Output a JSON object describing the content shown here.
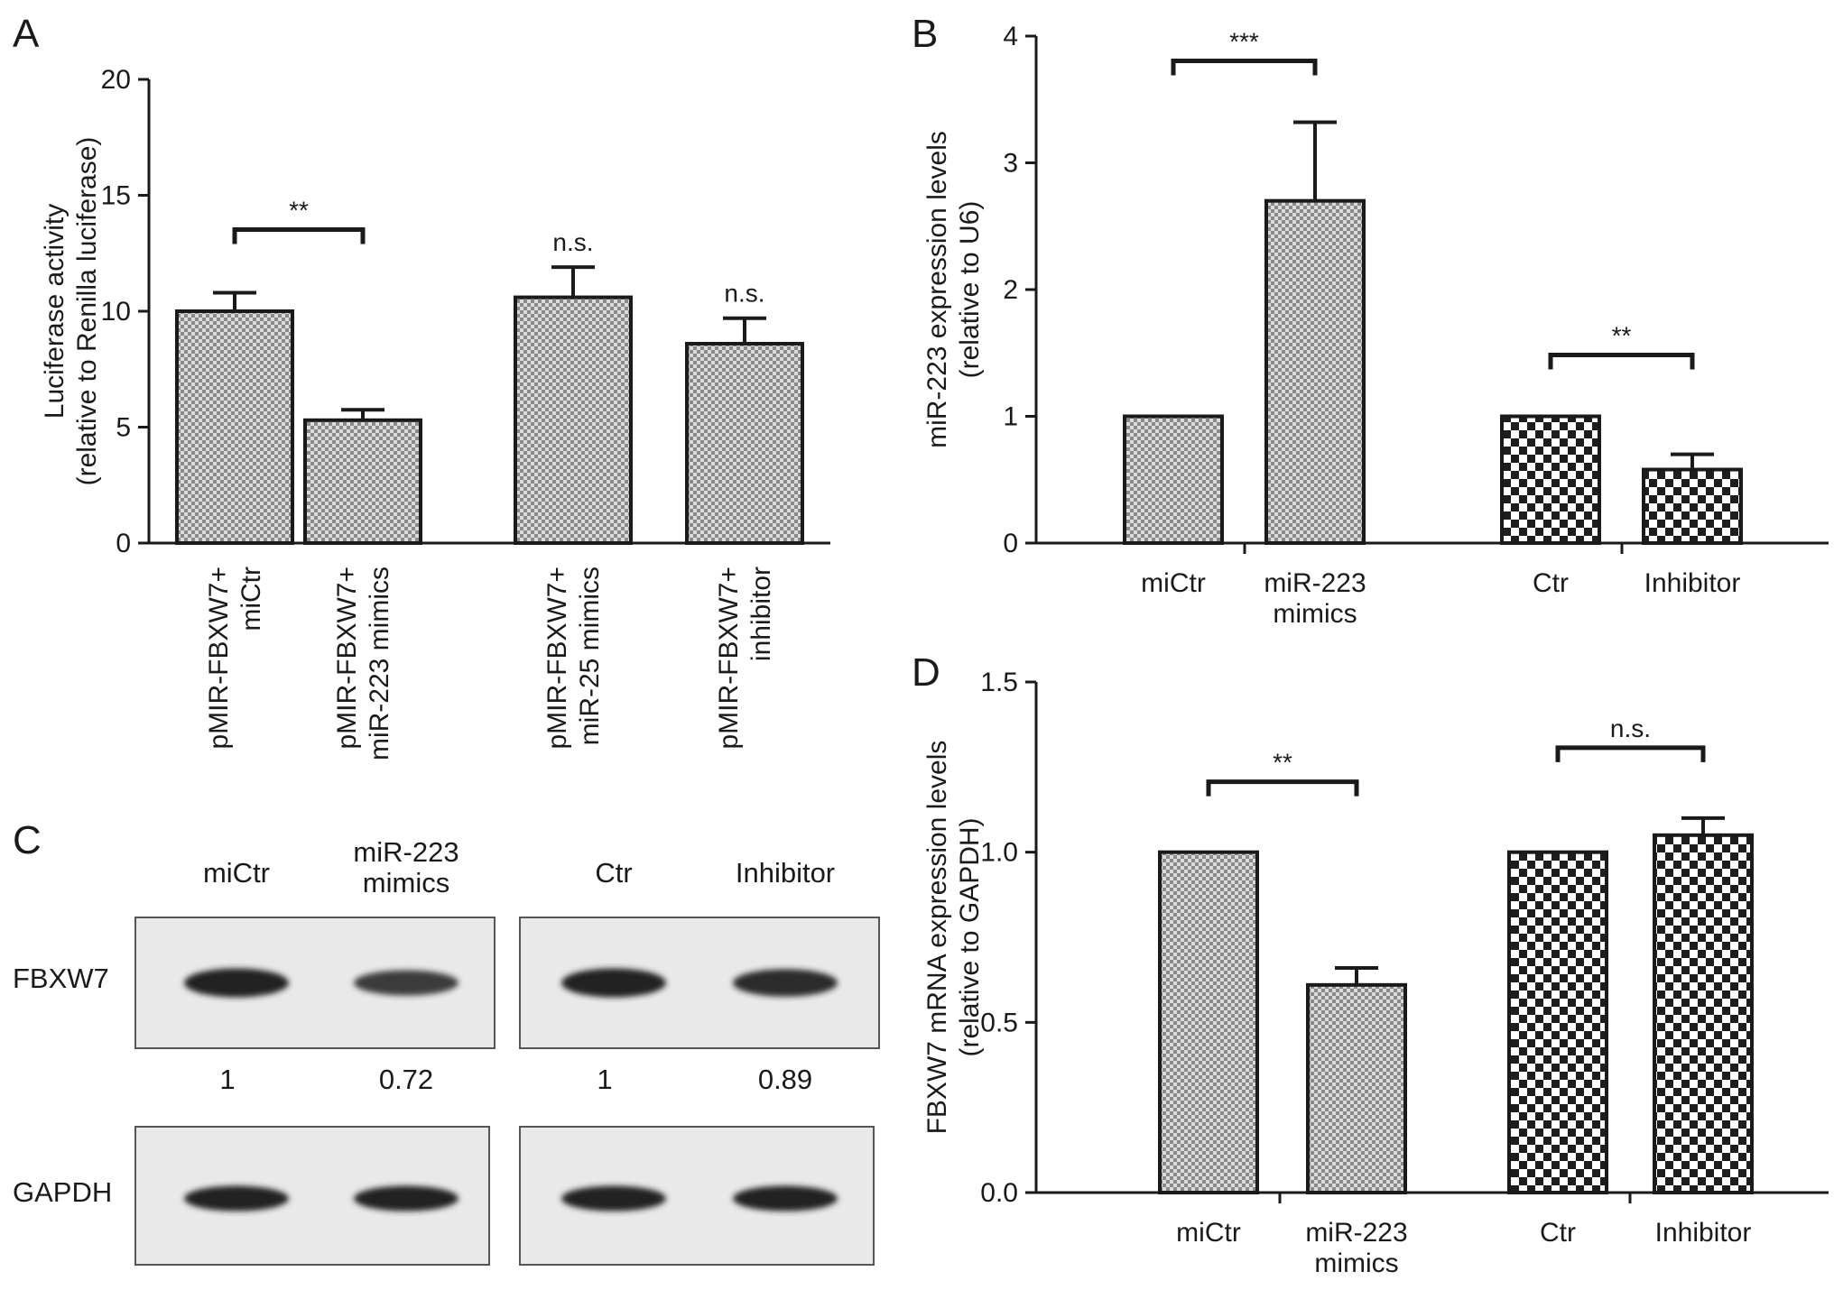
{
  "chart_data": [
    {
      "panel": "A",
      "type": "bar",
      "ylabel_lines": [
        "Luciferase activity",
        "(relative to Renilla luciferase)"
      ],
      "ylim": [
        0,
        20
      ],
      "yticks": [
        "0",
        "5",
        "10",
        "15",
        "20"
      ],
      "categories": [
        [
          "pMIR-FBXW7+",
          "miCtr"
        ],
        [
          "pMIR-FBXW7+",
          "miR-223 mimics"
        ],
        [
          "pMIR-FBXW7+",
          "miR-25 mimics"
        ],
        [
          "pMIR-FBXW7+",
          "inhibitor"
        ]
      ],
      "values": [
        10.0,
        5.3,
        10.6,
        8.6
      ],
      "errors": [
        0.8,
        0.45,
        1.3,
        1.1
      ],
      "pattern": "fine-check",
      "significance": [
        {
          "from": 0,
          "to": 1,
          "label": "**"
        },
        {
          "at": 2,
          "label": "n.s."
        },
        {
          "at": 3,
          "label": "n.s."
        }
      ]
    },
    {
      "panel": "B",
      "type": "bar",
      "ylabel_lines": [
        "miR-223 expression levels",
        "(relative to U6)"
      ],
      "ylim": [
        0,
        4
      ],
      "yticks": [
        "0",
        "1",
        "2",
        "3",
        "4"
      ],
      "categories": [
        [
          "miCtr"
        ],
        [
          "miR-223",
          "mimics"
        ],
        [
          "Ctr"
        ],
        [
          "Inhibitor"
        ]
      ],
      "values": [
        1.0,
        2.7,
        1.0,
        0.58
      ],
      "errors": [
        0,
        0.62,
        0,
        0.12
      ],
      "patterns": [
        "fine-check",
        "fine-check",
        "coarse-check",
        "coarse-check"
      ],
      "significance": [
        {
          "from": 0,
          "to": 1,
          "label": "***"
        },
        {
          "from": 2,
          "to": 3,
          "label": "**"
        }
      ]
    },
    {
      "panel": "D",
      "type": "bar",
      "ylabel_lines": [
        "FBXW7 mRNA expression levels",
        "(relative to GAPDH)"
      ],
      "ylim": [
        0,
        1.5
      ],
      "yticks": [
        "0.0",
        "0.5",
        "1.0",
        "1.5"
      ],
      "categories": [
        [
          "miCtr"
        ],
        [
          "miR-223",
          "mimics"
        ],
        [
          "Ctr"
        ],
        [
          "Inhibitor"
        ]
      ],
      "values": [
        1.0,
        0.61,
        1.0,
        1.05
      ],
      "errors": [
        0,
        0.05,
        0,
        0.05
      ],
      "patterns": [
        "fine-check",
        "fine-check",
        "coarse-check",
        "coarse-check"
      ],
      "significance": [
        {
          "from": 0,
          "to": 1,
          "label": "**"
        },
        {
          "from": 2,
          "to": 3,
          "label": "n.s."
        }
      ]
    }
  ],
  "blot": {
    "panel": "C",
    "lanes": [
      {
        "label_lines": [
          "miCtr"
        ],
        "quant": "1",
        "fbxw7": 1.0,
        "gapdh": 1.0
      },
      {
        "label_lines": [
          "miR-223",
          "mimics"
        ],
        "quant": "0.72",
        "fbxw7": 0.72,
        "gapdh": 1.0
      },
      {
        "label_lines": [
          "Ctr"
        ],
        "quant": "1",
        "fbxw7": 1.0,
        "gapdh": 1.0
      },
      {
        "label_lines": [
          "Inhibitor"
        ],
        "quant": "0.89",
        "fbxw7": 0.89,
        "gapdh": 1.0
      }
    ],
    "rows": [
      "FBXW7",
      "GAPDH"
    ]
  },
  "colors": {
    "ink": "#1a1a1a",
    "bar_light": "#d6d6d6",
    "bar_dark": "#8c8c8c",
    "blot_bg": "#e9e9e9",
    "band": "#202020"
  }
}
